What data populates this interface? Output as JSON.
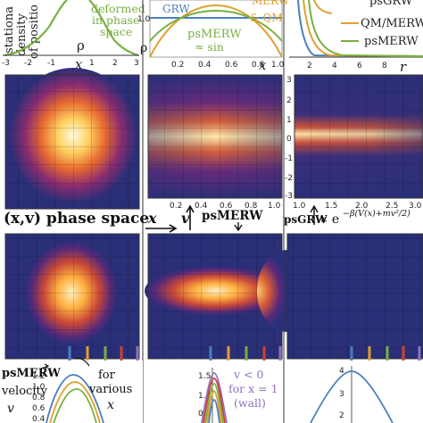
{
  "top_row": {
    "left": {
      "ylabel_lines": [
        "stationa",
        "density",
        "of positio"
      ],
      "annotation_lines": [
        "deformed",
        "in phase",
        "space"
      ],
      "rho_label": "ρ",
      "x_label": "x",
      "x_ticks": [
        "-3",
        "-2",
        "-1",
        "0",
        "1",
        "2",
        "3"
      ]
    },
    "middle": {
      "legend_grw": "GRW",
      "legend_merw_qm": "& QM",
      "legend_merw_top": "MERW",
      "psmerw_label": "psMERW",
      "approx_sin": "≈ sin",
      "rho_label": "ρ",
      "x_label": "x",
      "x_ticks": [
        "0.2",
        "0.4",
        "0.6",
        "0.8",
        "1.0"
      ],
      "y_tick": "1.0"
    },
    "right": {
      "legend": [
        "psGRW",
        "QM/MERW",
        "psMERW"
      ],
      "r_label": "r",
      "x_ticks": [
        "2",
        "4",
        "6",
        "8"
      ]
    }
  },
  "heatmap_row": {
    "middle_x_ticks": [
      "0.2",
      "0.4",
      "0.6",
      "0.8",
      "1.0"
    ],
    "right_y_ticks": [
      "3",
      "2",
      "1",
      "0",
      "-1",
      "-2",
      "-3"
    ],
    "right_x_ticks": [
      "1.0",
      "1.5",
      "2.0",
      "2.5",
      "3.0"
    ]
  },
  "caption_row": {
    "phase_space": "(x,v) phase space",
    "x_sym": "x",
    "v_sym": "v",
    "psmerw": "psMERW",
    "psgrw": "psGRW",
    "formula": "∝ e",
    "exponent": "−β(V(x)+mv²/2)"
  },
  "bottom_row": {
    "left_title": "psMERW",
    "left_lines": [
      "velocity",
      "v"
    ],
    "for_various": [
      "for",
      "various",
      "x"
    ],
    "left_y_ticks": [
      "1.2",
      "1.0",
      "0.8",
      "0.6",
      "0.4"
    ],
    "middle_y_ticks": [
      "1.5",
      "1.0",
      "0.5"
    ],
    "middle_note": [
      "v < 0",
      "for x = 1",
      "(wall)"
    ],
    "right_y_ticks": [
      "4",
      "3",
      "2"
    ]
  },
  "colors": {
    "psgrw": "#4a7fbf",
    "qm_merw": "#e0a030",
    "psmerw": "#78b040",
    "red": "#d04030",
    "purple": "#9070c0",
    "heat_bg": "#2a2f78"
  }
}
